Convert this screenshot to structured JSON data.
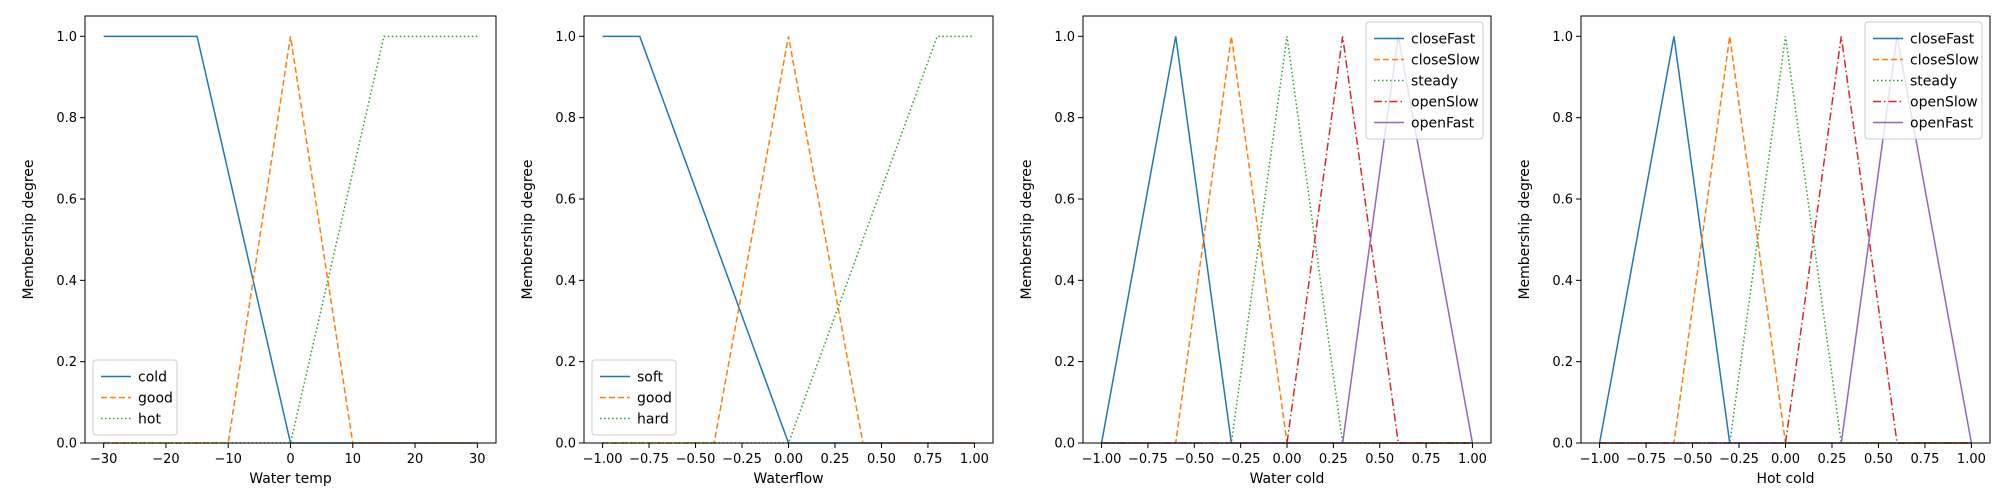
{
  "chart_data": [
    {
      "type": "line",
      "xlabel": "Water temp",
      "ylabel": "Membership degree",
      "xlim": [
        -33,
        33
      ],
      "ylim": [
        0,
        1.05
      ],
      "xticks": [
        -30,
        -20,
        -10,
        0,
        10,
        20,
        30
      ],
      "xtick_labels": [
        "−30",
        "−20",
        "−10",
        "0",
        "10",
        "20",
        "30"
      ],
      "yticks": [
        0,
        0.2,
        0.4,
        0.6,
        0.8,
        1.0
      ],
      "ytick_labels": [
        "0.0",
        "0.2",
        "0.4",
        "0.6",
        "0.8",
        "1.0"
      ],
      "legend": "lower-left",
      "grid": false,
      "series": [
        {
          "name": "cold",
          "color": "#1f77b4",
          "style": "solid",
          "x": [
            -30,
            -15,
            0,
            30
          ],
          "y": [
            1,
            1,
            0,
            0
          ]
        },
        {
          "name": "good",
          "color": "#ff7f0e",
          "style": "dashed",
          "x": [
            -30,
            -10,
            0,
            10,
            30
          ],
          "y": [
            0,
            0,
            1,
            0,
            0
          ]
        },
        {
          "name": "hot",
          "color": "#2ca02c",
          "style": "dotted",
          "x": [
            -30,
            0,
            15,
            30
          ],
          "y": [
            0,
            0,
            1,
            1
          ]
        }
      ]
    },
    {
      "type": "line",
      "xlabel": "Waterflow",
      "ylabel": "Membership degree",
      "xlim": [
        -1.1,
        1.1
      ],
      "ylim": [
        0,
        1.05
      ],
      "xticks": [
        -1.0,
        -0.75,
        -0.5,
        -0.25,
        0.0,
        0.25,
        0.5,
        0.75,
        1.0
      ],
      "xtick_labels": [
        "−1.00",
        "−0.75",
        "−0.50",
        "−0.25",
        "0.00",
        "0.25",
        "0.50",
        "0.75",
        "1.00"
      ],
      "yticks": [
        0,
        0.2,
        0.4,
        0.6,
        0.8,
        1.0
      ],
      "ytick_labels": [
        "0.0",
        "0.2",
        "0.4",
        "0.6",
        "0.8",
        "1.0"
      ],
      "legend": "lower-left",
      "grid": false,
      "series": [
        {
          "name": "soft",
          "color": "#1f77b4",
          "style": "solid",
          "x": [
            -1,
            -0.8,
            0,
            1
          ],
          "y": [
            1,
            1,
            0,
            0
          ]
        },
        {
          "name": "good",
          "color": "#ff7f0e",
          "style": "dashed",
          "x": [
            -1,
            -0.4,
            0,
            0.4,
            1
          ],
          "y": [
            0,
            0,
            1,
            0,
            0
          ]
        },
        {
          "name": "hard",
          "color": "#2ca02c",
          "style": "dotted",
          "x": [
            -1,
            0,
            0.8,
            1
          ],
          "y": [
            0,
            0,
            1,
            1
          ]
        }
      ]
    },
    {
      "type": "line",
      "xlabel": "Water cold",
      "ylabel": "Membership degree",
      "xlim": [
        -1.1,
        1.1
      ],
      "ylim": [
        0,
        1.05
      ],
      "xticks": [
        -1.0,
        -0.75,
        -0.5,
        -0.25,
        0.0,
        0.25,
        0.5,
        0.75,
        1.0
      ],
      "xtick_labels": [
        "−1.00",
        "−0.75",
        "−0.50",
        "−0.25",
        "0.00",
        "0.25",
        "0.50",
        "0.75",
        "1.00"
      ],
      "yticks": [
        0,
        0.2,
        0.4,
        0.6,
        0.8,
        1.0
      ],
      "ytick_labels": [
        "0.0",
        "0.2",
        "0.4",
        "0.6",
        "0.8",
        "1.0"
      ],
      "legend": "upper-right",
      "grid": false,
      "series": [
        {
          "name": "closeFast",
          "color": "#1f77b4",
          "style": "solid",
          "x": [
            -1,
            -0.6,
            -0.3,
            1
          ],
          "y": [
            0,
            1,
            0,
            0
          ]
        },
        {
          "name": "closeSlow",
          "color": "#ff7f0e",
          "style": "dashed",
          "x": [
            -1,
            -0.6,
            -0.3,
            0,
            1
          ],
          "y": [
            0,
            0,
            1,
            0,
            0
          ]
        },
        {
          "name": "steady",
          "color": "#2ca02c",
          "style": "dotted",
          "x": [
            -1,
            -0.3,
            0,
            0.3,
            1
          ],
          "y": [
            0,
            0,
            1,
            0,
            0
          ]
        },
        {
          "name": "openSlow",
          "color": "#d62728",
          "style": "dashdot",
          "x": [
            -1,
            0,
            0.3,
            0.6,
            1
          ],
          "y": [
            0,
            0,
            1,
            0,
            0
          ]
        },
        {
          "name": "openFast",
          "color": "#9467bd",
          "style": "solid",
          "x": [
            -1,
            0.3,
            0.6,
            1
          ],
          "y": [
            0,
            0,
            1,
            0
          ]
        }
      ]
    },
    {
      "type": "line",
      "xlabel": "Hot cold",
      "ylabel": "Membership degree",
      "xlim": [
        -1.1,
        1.1
      ],
      "ylim": [
        0,
        1.05
      ],
      "xticks": [
        -1.0,
        -0.75,
        -0.5,
        -0.25,
        0.0,
        0.25,
        0.5,
        0.75,
        1.0
      ],
      "xtick_labels": [
        "−1.00",
        "−0.75",
        "−0.50",
        "−0.25",
        "0.00",
        "0.25",
        "0.50",
        "0.75",
        "1.00"
      ],
      "yticks": [
        0,
        0.2,
        0.4,
        0.6,
        0.8,
        1.0
      ],
      "ytick_labels": [
        "0.0",
        "0.2",
        "0.4",
        "0.6",
        "0.8",
        "1.0"
      ],
      "legend": "upper-right",
      "grid": false,
      "series": [
        {
          "name": "closeFast",
          "color": "#1f77b4",
          "style": "solid",
          "x": [
            -1,
            -0.6,
            -0.3,
            1
          ],
          "y": [
            0,
            1,
            0,
            0
          ]
        },
        {
          "name": "closeSlow",
          "color": "#ff7f0e",
          "style": "dashed",
          "x": [
            -1,
            -0.6,
            -0.3,
            0,
            1
          ],
          "y": [
            0,
            0,
            1,
            0,
            0
          ]
        },
        {
          "name": "steady",
          "color": "#2ca02c",
          "style": "dotted",
          "x": [
            -1,
            -0.3,
            0,
            0.3,
            1
          ],
          "y": [
            0,
            0,
            1,
            0,
            0
          ]
        },
        {
          "name": "openSlow",
          "color": "#d62728",
          "style": "dashdot",
          "x": [
            -1,
            0,
            0.3,
            0.6,
            1
          ],
          "y": [
            0,
            0,
            1,
            0,
            0
          ]
        },
        {
          "name": "openFast",
          "color": "#9467bd",
          "style": "solid",
          "x": [
            -1,
            0.3,
            0.6,
            1
          ],
          "y": [
            0,
            0,
            1,
            0
          ]
        }
      ]
    }
  ]
}
